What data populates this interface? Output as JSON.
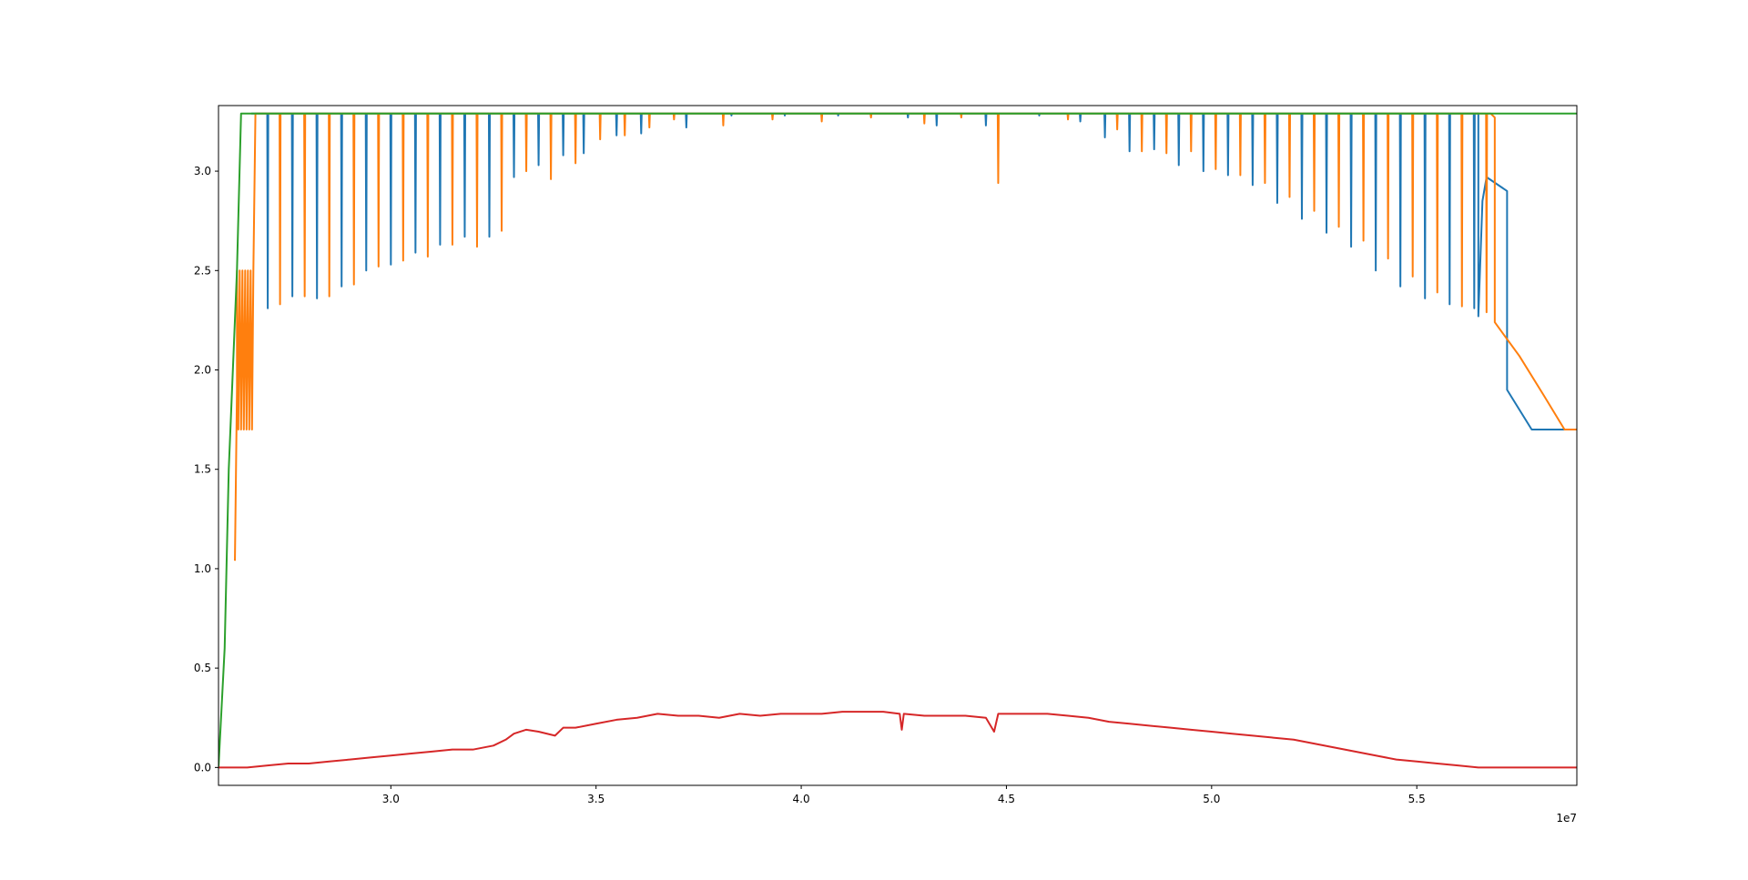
{
  "chart_data": {
    "type": "line",
    "title": "",
    "xlabel": "",
    "ylabel": "",
    "x_offset_label": "1e7",
    "xlim": [
      2.58,
      5.89
    ],
    "ylim": [
      -0.09,
      3.33
    ],
    "x_ticks": [
      3.0,
      3.5,
      4.0,
      4.5,
      5.0,
      5.5
    ],
    "x_tick_labels": [
      "3.0",
      "3.5",
      "4.0",
      "4.5",
      "5.0",
      "5.5"
    ],
    "y_ticks": [
      0.0,
      0.5,
      1.0,
      1.5,
      2.0,
      2.5,
      3.0
    ],
    "y_tick_labels": [
      "0.0",
      "0.5",
      "1.0",
      "1.5",
      "2.0",
      "2.5",
      "3.0"
    ],
    "grid": false,
    "legend": "none",
    "series": [
      {
        "color": "#1f77b4",
        "baseline": 3.29,
        "spikes": [
          [
            2.7,
            2.31
          ],
          [
            2.76,
            2.37
          ],
          [
            2.82,
            2.36
          ],
          [
            2.88,
            2.42
          ],
          [
            2.94,
            2.5
          ],
          [
            3.0,
            2.53
          ],
          [
            3.06,
            2.59
          ],
          [
            3.12,
            2.63
          ],
          [
            3.18,
            2.67
          ],
          [
            3.24,
            2.67
          ],
          [
            3.3,
            2.97
          ],
          [
            3.36,
            3.03
          ],
          [
            3.42,
            3.08
          ],
          [
            3.47,
            3.09
          ],
          [
            3.55,
            3.18
          ],
          [
            3.61,
            3.19
          ],
          [
            3.72,
            3.22
          ],
          [
            3.83,
            3.28
          ],
          [
            3.96,
            3.28
          ],
          [
            4.09,
            3.28
          ],
          [
            4.26,
            3.27
          ],
          [
            4.33,
            3.23
          ],
          [
            4.45,
            3.23
          ],
          [
            4.58,
            3.28
          ],
          [
            4.68,
            3.25
          ],
          [
            4.74,
            3.17
          ],
          [
            4.8,
            3.1
          ],
          [
            4.86,
            3.11
          ],
          [
            4.92,
            3.03
          ],
          [
            4.98,
            3.0
          ],
          [
            5.04,
            2.98
          ],
          [
            5.1,
            2.93
          ],
          [
            5.16,
            2.84
          ],
          [
            5.22,
            2.76
          ],
          [
            5.28,
            2.69
          ],
          [
            5.34,
            2.62
          ],
          [
            5.4,
            2.5
          ],
          [
            5.46,
            2.42
          ],
          [
            5.52,
            2.36
          ],
          [
            5.58,
            2.33
          ],
          [
            5.64,
            2.31
          ]
        ],
        "tail": [
          [
            5.65,
            3.29
          ],
          [
            5.65,
            2.27
          ],
          [
            5.66,
            2.85
          ],
          [
            5.67,
            2.97
          ],
          [
            5.72,
            2.9
          ],
          [
            5.72,
            1.9
          ],
          [
            5.78,
            1.7
          ],
          [
            5.88,
            1.7
          ]
        ]
      },
      {
        "color": "#ff7f0e",
        "baseline": 3.29,
        "oscillation": {
          "x_start": 2.625,
          "x_end": 2.665,
          "high": 2.5,
          "low": 1.7
        },
        "start": [
          [
            2.62,
            1.04
          ],
          [
            2.625,
            1.9
          ]
        ],
        "spikes": [
          [
            2.73,
            2.33
          ],
          [
            2.79,
            2.37
          ],
          [
            2.85,
            2.37
          ],
          [
            2.91,
            2.43
          ],
          [
            2.97,
            2.52
          ],
          [
            3.03,
            2.55
          ],
          [
            3.09,
            2.57
          ],
          [
            3.15,
            2.63
          ],
          [
            3.21,
            2.62
          ],
          [
            3.27,
            2.7
          ],
          [
            3.33,
            3.0
          ],
          [
            3.39,
            2.96
          ],
          [
            3.45,
            3.04
          ],
          [
            3.51,
            3.16
          ],
          [
            3.57,
            3.18
          ],
          [
            3.63,
            3.22
          ],
          [
            3.69,
            3.26
          ],
          [
            3.81,
            3.23
          ],
          [
            3.93,
            3.26
          ],
          [
            4.05,
            3.25
          ],
          [
            4.17,
            3.27
          ],
          [
            4.3,
            3.24
          ],
          [
            4.39,
            3.27
          ],
          [
            4.48,
            2.94
          ],
          [
            4.65,
            3.26
          ],
          [
            4.77,
            3.21
          ],
          [
            4.83,
            3.1
          ],
          [
            4.89,
            3.09
          ],
          [
            4.95,
            3.1
          ],
          [
            5.01,
            3.01
          ],
          [
            5.07,
            2.98
          ],
          [
            5.13,
            2.94
          ],
          [
            5.19,
            2.87
          ],
          [
            5.25,
            2.8
          ],
          [
            5.31,
            2.72
          ],
          [
            5.37,
            2.65
          ],
          [
            5.43,
            2.56
          ],
          [
            5.49,
            2.47
          ],
          [
            5.55,
            2.39
          ],
          [
            5.61,
            2.32
          ],
          [
            5.67,
            2.29
          ]
        ],
        "tail": [
          [
            5.68,
            3.29
          ],
          [
            5.69,
            3.27
          ],
          [
            5.69,
            2.24
          ],
          [
            5.75,
            2.07
          ],
          [
            5.81,
            1.87
          ],
          [
            5.86,
            1.7
          ],
          [
            5.89,
            1.7
          ]
        ]
      },
      {
        "color": "#2ca02c",
        "points": [
          [
            2.58,
            0.0
          ],
          [
            2.595,
            0.6
          ],
          [
            2.605,
            1.5
          ],
          [
            2.615,
            2.0
          ],
          [
            2.625,
            2.5
          ],
          [
            2.635,
            3.29
          ],
          [
            5.89,
            3.29
          ]
        ]
      },
      {
        "color": "#d62728",
        "points": [
          [
            2.58,
            0.0
          ],
          [
            2.65,
            0.0
          ],
          [
            2.7,
            0.01
          ],
          [
            2.75,
            0.02
          ],
          [
            2.8,
            0.02
          ],
          [
            2.85,
            0.03
          ],
          [
            2.9,
            0.04
          ],
          [
            2.95,
            0.05
          ],
          [
            3.0,
            0.06
          ],
          [
            3.05,
            0.07
          ],
          [
            3.1,
            0.08
          ],
          [
            3.15,
            0.09
          ],
          [
            3.2,
            0.09
          ],
          [
            3.25,
            0.11
          ],
          [
            3.28,
            0.14
          ],
          [
            3.3,
            0.17
          ],
          [
            3.33,
            0.19
          ],
          [
            3.36,
            0.18
          ],
          [
            3.4,
            0.16
          ],
          [
            3.42,
            0.2
          ],
          [
            3.45,
            0.2
          ],
          [
            3.5,
            0.22
          ],
          [
            3.55,
            0.24
          ],
          [
            3.6,
            0.25
          ],
          [
            3.65,
            0.27
          ],
          [
            3.7,
            0.26
          ],
          [
            3.75,
            0.26
          ],
          [
            3.8,
            0.25
          ],
          [
            3.85,
            0.27
          ],
          [
            3.9,
            0.26
          ],
          [
            3.95,
            0.27
          ],
          [
            4.0,
            0.27
          ],
          [
            4.05,
            0.27
          ],
          [
            4.1,
            0.28
          ],
          [
            4.15,
            0.28
          ],
          [
            4.2,
            0.28
          ],
          [
            4.24,
            0.27
          ],
          [
            4.245,
            0.19
          ],
          [
            4.25,
            0.27
          ],
          [
            4.3,
            0.26
          ],
          [
            4.35,
            0.26
          ],
          [
            4.4,
            0.26
          ],
          [
            4.45,
            0.25
          ],
          [
            4.47,
            0.18
          ],
          [
            4.48,
            0.27
          ],
          [
            4.55,
            0.27
          ],
          [
            4.6,
            0.27
          ],
          [
            4.65,
            0.26
          ],
          [
            4.7,
            0.25
          ],
          [
            4.75,
            0.23
          ],
          [
            4.8,
            0.22
          ],
          [
            4.85,
            0.21
          ],
          [
            4.9,
            0.2
          ],
          [
            4.95,
            0.19
          ],
          [
            5.0,
            0.18
          ],
          [
            5.05,
            0.17
          ],
          [
            5.1,
            0.16
          ],
          [
            5.15,
            0.15
          ],
          [
            5.2,
            0.14
          ],
          [
            5.25,
            0.12
          ],
          [
            5.3,
            0.1
          ],
          [
            5.35,
            0.08
          ],
          [
            5.4,
            0.06
          ],
          [
            5.45,
            0.04
          ],
          [
            5.5,
            0.03
          ],
          [
            5.55,
            0.02
          ],
          [
            5.6,
            0.01
          ],
          [
            5.65,
            0.0
          ],
          [
            5.89,
            0.0
          ]
        ]
      }
    ]
  }
}
